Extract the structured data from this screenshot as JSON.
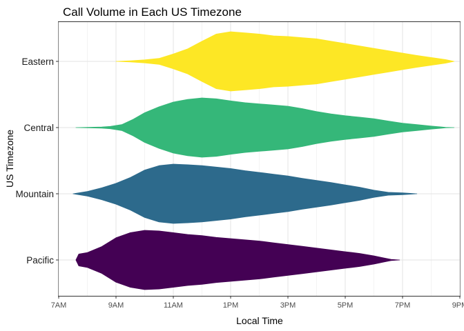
{
  "chart_data": {
    "type": "violin",
    "title": "Call Volume in Each US Timezone",
    "xlabel": "Local Time",
    "ylabel": "US Timezone",
    "x_ticks": [
      "7AM",
      "9AM",
      "11AM",
      "1PM",
      "3PM",
      "5PM",
      "7PM",
      "9PM"
    ],
    "x_tick_hours": [
      7,
      9,
      11,
      13,
      15,
      17,
      19,
      21
    ],
    "xlim": [
      7,
      21
    ],
    "grid": true,
    "legend": "none",
    "series": [
      {
        "name": "Eastern",
        "color": "#FDE725",
        "density": [
          [
            9.0,
            0.0
          ],
          [
            9.5,
            0.02
          ],
          [
            10.0,
            0.05
          ],
          [
            10.5,
            0.1
          ],
          [
            11.0,
            0.25
          ],
          [
            11.5,
            0.42
          ],
          [
            12.0,
            0.68
          ],
          [
            12.5,
            0.92
          ],
          [
            13.0,
            1.0
          ],
          [
            13.5,
            0.96
          ],
          [
            14.0,
            0.92
          ],
          [
            14.5,
            0.86
          ],
          [
            15.0,
            0.84
          ],
          [
            15.5,
            0.8
          ],
          [
            16.0,
            0.76
          ],
          [
            16.5,
            0.68
          ],
          [
            17.0,
            0.6
          ],
          [
            17.5,
            0.52
          ],
          [
            18.0,
            0.44
          ],
          [
            18.5,
            0.36
          ],
          [
            19.0,
            0.28
          ],
          [
            19.5,
            0.2
          ],
          [
            20.0,
            0.13
          ],
          [
            20.5,
            0.06
          ],
          [
            20.8,
            0.0
          ]
        ]
      },
      {
        "name": "Central",
        "color": "#35B779",
        "density": [
          [
            7.6,
            0.0
          ],
          [
            8.0,
            0.01
          ],
          [
            8.5,
            0.02
          ],
          [
            8.8,
            0.04
          ],
          [
            9.2,
            0.1
          ],
          [
            9.6,
            0.28
          ],
          [
            10.0,
            0.5
          ],
          [
            10.5,
            0.7
          ],
          [
            11.0,
            0.86
          ],
          [
            11.5,
            0.95
          ],
          [
            12.0,
            1.0
          ],
          [
            12.5,
            0.97
          ],
          [
            13.0,
            0.9
          ],
          [
            13.5,
            0.84
          ],
          [
            14.0,
            0.8
          ],
          [
            14.5,
            0.76
          ],
          [
            15.0,
            0.72
          ],
          [
            15.5,
            0.64
          ],
          [
            16.0,
            0.54
          ],
          [
            16.5,
            0.46
          ],
          [
            17.0,
            0.4
          ],
          [
            17.5,
            0.35
          ],
          [
            18.0,
            0.3
          ],
          [
            18.5,
            0.22
          ],
          [
            19.0,
            0.15
          ],
          [
            19.5,
            0.1
          ],
          [
            20.0,
            0.05
          ],
          [
            20.5,
            0.01
          ],
          [
            20.8,
            0.0
          ]
        ]
      },
      {
        "name": "Mountain",
        "color": "#2D6A8C",
        "density": [
          [
            7.5,
            0.0
          ],
          [
            8.0,
            0.08
          ],
          [
            8.5,
            0.2
          ],
          [
            9.0,
            0.35
          ],
          [
            9.5,
            0.55
          ],
          [
            10.0,
            0.8
          ],
          [
            10.5,
            0.95
          ],
          [
            11.0,
            1.0
          ],
          [
            11.5,
            0.98
          ],
          [
            12.0,
            0.95
          ],
          [
            12.5,
            0.9
          ],
          [
            13.0,
            0.85
          ],
          [
            13.5,
            0.78
          ],
          [
            14.0,
            0.72
          ],
          [
            14.5,
            0.66
          ],
          [
            15.0,
            0.6
          ],
          [
            15.5,
            0.52
          ],
          [
            16.0,
            0.45
          ],
          [
            16.5,
            0.38
          ],
          [
            17.0,
            0.3
          ],
          [
            17.5,
            0.22
          ],
          [
            18.0,
            0.12
          ],
          [
            18.5,
            0.05
          ],
          [
            19.0,
            0.03
          ],
          [
            19.5,
            0.0
          ]
        ]
      },
      {
        "name": "Pacific",
        "color": "#440154",
        "density": [
          [
            7.6,
            0.0
          ],
          [
            7.7,
            0.2
          ],
          [
            8.0,
            0.25
          ],
          [
            8.5,
            0.45
          ],
          [
            9.0,
            0.75
          ],
          [
            9.5,
            0.92
          ],
          [
            10.0,
            1.0
          ],
          [
            10.5,
            0.98
          ],
          [
            11.0,
            0.92
          ],
          [
            11.5,
            0.86
          ],
          [
            12.0,
            0.82
          ],
          [
            12.5,
            0.76
          ],
          [
            13.0,
            0.72
          ],
          [
            13.5,
            0.68
          ],
          [
            14.0,
            0.64
          ],
          [
            14.5,
            0.58
          ],
          [
            15.0,
            0.52
          ],
          [
            15.5,
            0.46
          ],
          [
            16.0,
            0.4
          ],
          [
            16.5,
            0.34
          ],
          [
            17.0,
            0.28
          ],
          [
            17.5,
            0.22
          ],
          [
            18.0,
            0.14
          ],
          [
            18.3,
            0.08
          ],
          [
            18.6,
            0.02
          ],
          [
            18.9,
            0.0
          ]
        ]
      }
    ]
  }
}
